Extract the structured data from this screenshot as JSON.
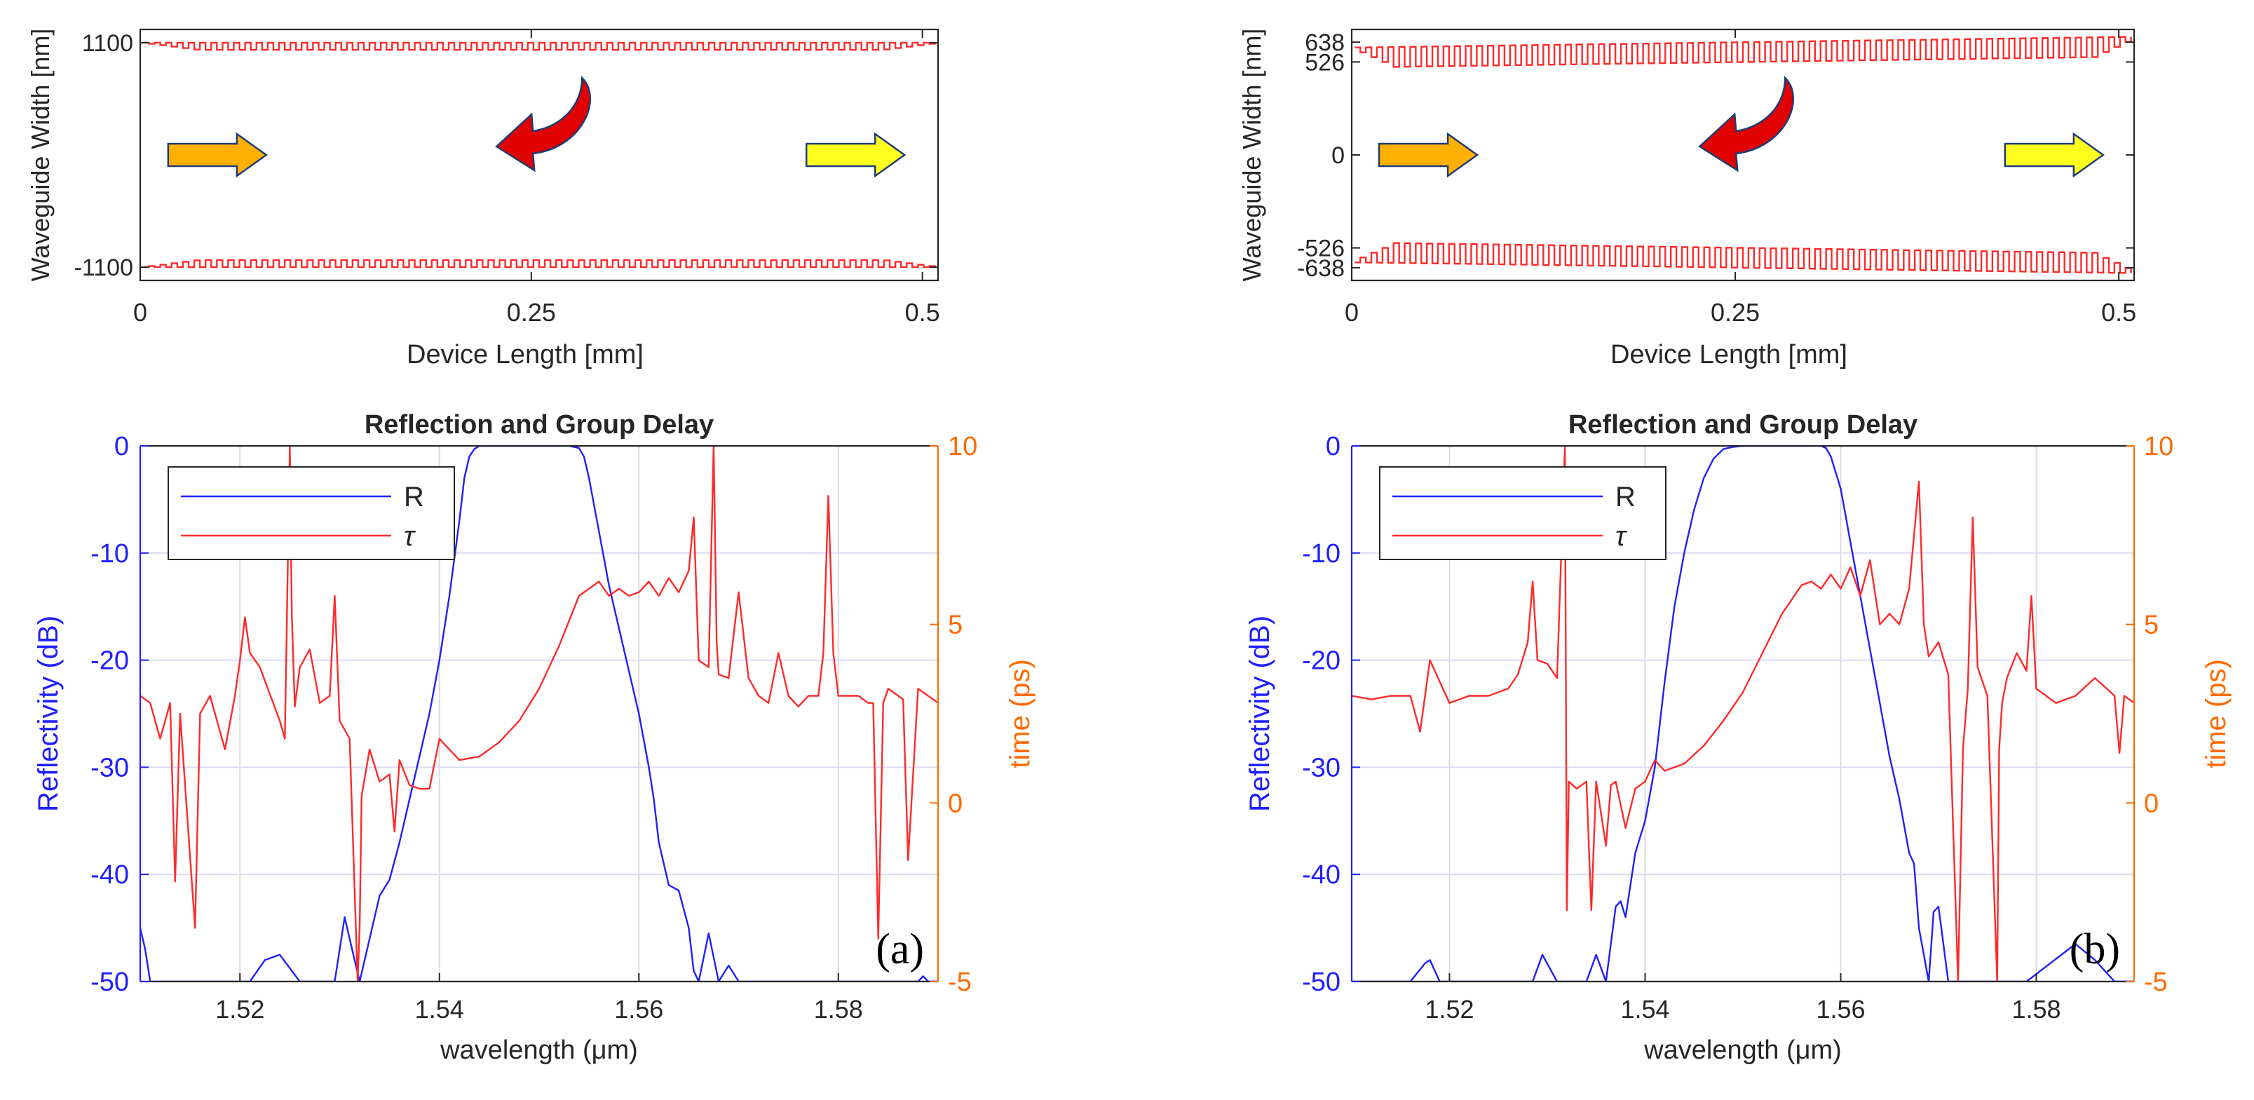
{
  "figure": {
    "panels": [
      {
        "letter": "(a)",
        "structure": {
          "ylabel": "Waveguide Width [nm]",
          "xlabel": "Device Length  [mm]",
          "x_ticks": [
            "0",
            "0.25",
            "0.5"
          ],
          "y_ticks": [
            "1100",
            "-1100"
          ],
          "xlim": [
            0,
            0.51
          ],
          "ylim": [
            -1230,
            1230
          ],
          "grating": {
            "top_outer": 1100,
            "top_inner": 1030,
            "bottom_outer": -1100,
            "bottom_inner": -1030,
            "periods": 70,
            "apod": "edge"
          },
          "arrows": {
            "input": "input-arrow",
            "reflected": "reflected-arrow",
            "output": "output-arrow"
          }
        }
      },
      {
        "letter": "(b)",
        "structure": {
          "ylabel": "Waveguide Width [nm]",
          "xlabel": "Device Length  [mm]",
          "x_ticks": [
            "0",
            "0.25",
            "0.5"
          ],
          "y_ticks": [
            "638",
            "526",
            "0",
            "-526",
            "-638"
          ],
          "xlim": [
            0,
            0.51
          ],
          "ylim": [
            -710,
            710
          ],
          "grating": {
            "top_outer": 638,
            "top_inner": 526,
            "bottom_outer": -638,
            "bottom_inner": -526,
            "periods": 70,
            "apod": "chirp"
          },
          "arrows": {
            "input": "input-arrow",
            "reflected": "reflected-arrow",
            "output": "output-arrow"
          }
        }
      }
    ],
    "colors": {
      "reflectivity": "#1f1fff",
      "delay": "#ff2a2a",
      "right_axis": "#ff6a00",
      "arrow_in": "#ffb000",
      "arrow_out": "#ffff1e",
      "arrow_reflect": "#e00000"
    }
  },
  "chart_data": [
    {
      "type": "line",
      "title": "Reflection and Group Delay",
      "xlabel": "wavelength  (μm)",
      "ylabel_left": "Reflectivity  (dB)",
      "ylabel_right": "time  (ps)",
      "xlim": [
        1.51,
        1.59
      ],
      "ylim_left": [
        -50,
        0
      ],
      "ylim_right": [
        -5,
        10
      ],
      "x_ticks": [
        "1.52",
        "1.54",
        "1.56",
        "1.58"
      ],
      "y_ticks_left": [
        "0",
        "-10",
        "-20",
        "-30",
        "-40",
        "-50"
      ],
      "y_ticks_right": [
        "10",
        "5",
        "0",
        "-5"
      ],
      "grid": true,
      "legend": {
        "position": "top-left",
        "entries": [
          "R",
          "τ"
        ]
      },
      "series": [
        {
          "name": "R",
          "axis": "left",
          "x": [
            1.51,
            1.5105,
            1.511,
            1.512,
            1.514,
            1.516,
            1.518,
            1.521,
            1.5225,
            1.524,
            1.526,
            1.528,
            1.5295,
            1.5305,
            1.5315,
            1.532,
            1.533,
            1.534,
            1.535,
            1.536,
            1.537,
            1.538,
            1.539,
            1.54,
            1.541,
            1.542,
            1.5425,
            1.543,
            1.5435,
            1.544,
            1.545,
            1.547,
            1.55,
            1.553,
            1.554,
            1.5545,
            1.555,
            1.556,
            1.557,
            1.558,
            1.559,
            1.56,
            1.561,
            1.5615,
            1.562,
            1.563,
            1.564,
            1.565,
            1.5655,
            1.566,
            1.567,
            1.568,
            1.569,
            1.57,
            1.572,
            1.576,
            1.58,
            1.584,
            1.588,
            1.5885,
            1.589,
            1.59
          ],
          "values": [
            -45,
            -47,
            -50,
            -50,
            -50,
            -50,
            -50,
            -50,
            -48,
            -47.5,
            -50,
            -50,
            -50,
            -44,
            -48,
            -50,
            -46,
            -42,
            -40.5,
            -37,
            -33,
            -29,
            -25,
            -20,
            -14,
            -7,
            -3,
            -1,
            -0.3,
            0,
            0,
            0,
            0,
            0,
            -0.2,
            -1,
            -3,
            -8,
            -13,
            -17,
            -21,
            -25,
            -30,
            -33,
            -37,
            -41,
            -41.5,
            -45,
            -49,
            -50,
            -45.5,
            -50,
            -48.5,
            -50,
            -50,
            -50,
            -50,
            -50,
            -50,
            -49.5,
            -50,
            -50
          ]
        },
        {
          "name": "τ",
          "axis": "right",
          "x": [
            1.51,
            1.511,
            1.512,
            1.513,
            1.5135,
            1.514,
            1.5155,
            1.516,
            1.517,
            1.5185,
            1.5195,
            1.52,
            1.5205,
            1.521,
            1.522,
            1.524,
            1.5245,
            1.525,
            1.5252,
            1.5255,
            1.526,
            1.527,
            1.528,
            1.529,
            1.5295,
            1.53,
            1.531,
            1.5318,
            1.532,
            1.5322,
            1.533,
            1.534,
            1.535,
            1.5355,
            1.536,
            1.537,
            1.538,
            1.539,
            1.54,
            1.542,
            1.544,
            1.546,
            1.548,
            1.55,
            1.552,
            1.554,
            1.556,
            1.557,
            1.558,
            1.559,
            1.56,
            1.561,
            1.562,
            1.563,
            1.564,
            1.565,
            1.5655,
            1.566,
            1.567,
            1.5675,
            1.5678,
            1.568,
            1.569,
            1.57,
            1.571,
            1.572,
            1.573,
            1.574,
            1.575,
            1.576,
            1.577,
            1.578,
            1.5785,
            1.579,
            1.5795,
            1.58,
            1.582,
            1.583,
            1.5835,
            1.584,
            1.5845,
            1.585,
            1.586,
            1.5865,
            1.587,
            1.588,
            1.589,
            1.59
          ],
          "values": [
            3,
            2.8,
            1.8,
            2.8,
            -2.2,
            2.5,
            -3.5,
            2.5,
            3,
            1.5,
            3,
            4,
            5.2,
            4.2,
            3.8,
            2.3,
            1.8,
            10,
            5.3,
            2.7,
            3.8,
            4.3,
            2.8,
            3,
            5.8,
            2.3,
            1.8,
            -5,
            -3.5,
            0.2,
            1.5,
            0.6,
            0.8,
            -0.8,
            1.2,
            0.5,
            0.4,
            0.4,
            1.8,
            1.2,
            1.3,
            1.7,
            2.3,
            3.2,
            4.4,
            5.8,
            6.2,
            5.8,
            6,
            5.8,
            5.9,
            6.2,
            5.8,
            6.3,
            5.9,
            6.5,
            8,
            4,
            3.8,
            10,
            4.5,
            3.6,
            3.5,
            5.9,
            3.5,
            3,
            2.8,
            4.2,
            3,
            2.7,
            3,
            3,
            4.2,
            8.6,
            4.2,
            3,
            3,
            2.8,
            2.8,
            -3.8,
            2.8,
            3.2,
            3,
            2.9,
            -1.6,
            3.2,
            3,
            2.8
          ]
        }
      ]
    },
    {
      "type": "line",
      "title": "Reflection and Group Delay",
      "xlabel": "wavelength  (μm)",
      "ylabel_left": "Reflectivity  (dB)",
      "ylabel_right": "time  (ps)",
      "xlim": [
        1.51,
        1.59
      ],
      "ylim_left": [
        -50,
        0
      ],
      "ylim_right": [
        -5,
        10
      ],
      "x_ticks": [
        "1.52",
        "1.54",
        "1.56",
        "1.58"
      ],
      "y_ticks_left": [
        "0",
        "-10",
        "-20",
        "-30",
        "-40",
        "-50"
      ],
      "y_ticks_right": [
        "10",
        "5",
        "0",
        "-5"
      ],
      "grid": true,
      "legend": {
        "position": "top-left",
        "entries": [
          "R",
          "τ"
        ]
      },
      "series": [
        {
          "name": "R",
          "axis": "left",
          "x": [
            1.51,
            1.516,
            1.5175,
            1.518,
            1.519,
            1.52,
            1.524,
            1.5285,
            1.5295,
            1.531,
            1.534,
            1.535,
            1.536,
            1.537,
            1.5375,
            1.538,
            1.539,
            1.54,
            1.541,
            1.542,
            1.543,
            1.544,
            1.545,
            1.546,
            1.547,
            1.548,
            1.549,
            1.55,
            1.554,
            1.558,
            1.5585,
            1.559,
            1.56,
            1.561,
            1.562,
            1.563,
            1.564,
            1.565,
            1.566,
            1.567,
            1.5675,
            1.568,
            1.569,
            1.5695,
            1.57,
            1.571,
            1.575,
            1.579,
            1.584,
            1.586,
            1.588,
            1.59
          ],
          "values": [
            -50,
            -50,
            -48.3,
            -48,
            -50,
            -50,
            -50,
            -50,
            -47.5,
            -50,
            -50,
            -47.5,
            -50,
            -43,
            -42.5,
            -44,
            -38,
            -35,
            -30,
            -22,
            -15,
            -10,
            -6,
            -3,
            -1.2,
            -0.3,
            -0.1,
            0,
            0,
            0,
            -0.2,
            -1,
            -4,
            -9,
            -14,
            -19,
            -24,
            -29,
            -33,
            -38,
            -39,
            -45,
            -50,
            -43.5,
            -43,
            -50,
            -50,
            -50,
            -46.5,
            -48,
            -50,
            -50
          ]
        },
        {
          "name": "τ",
          "axis": "right",
          "x": [
            1.51,
            1.512,
            1.514,
            1.516,
            1.517,
            1.518,
            1.519,
            1.52,
            1.522,
            1.524,
            1.526,
            1.527,
            1.528,
            1.5285,
            1.529,
            1.53,
            1.531,
            1.5318,
            1.532,
            1.5322,
            1.533,
            1.534,
            1.5345,
            1.535,
            1.536,
            1.5365,
            1.537,
            1.538,
            1.539,
            1.54,
            1.541,
            1.542,
            1.544,
            1.546,
            1.548,
            1.55,
            1.552,
            1.554,
            1.556,
            1.557,
            1.558,
            1.559,
            1.56,
            1.561,
            1.562,
            1.563,
            1.564,
            1.565,
            1.566,
            1.567,
            1.568,
            1.5685,
            1.569,
            1.57,
            1.571,
            1.572,
            1.5725,
            1.573,
            1.5735,
            1.574,
            1.575,
            1.576,
            1.5762,
            1.5765,
            1.577,
            1.578,
            1.579,
            1.5795,
            1.58,
            1.582,
            1.584,
            1.586,
            1.588,
            1.5885,
            1.589,
            1.59
          ],
          "values": [
            3,
            2.9,
            3,
            3,
            2,
            4,
            3.4,
            2.8,
            3,
            3,
            3.2,
            3.6,
            4.5,
            6.2,
            4,
            3.9,
            3.5,
            10,
            -3,
            0.6,
            0.4,
            0.6,
            -3,
            0.6,
            -1.2,
            0.5,
            0.6,
            -0.7,
            0.4,
            0.6,
            1.2,
            0.9,
            1.1,
            1.6,
            2.3,
            3.1,
            4.2,
            5.3,
            6.1,
            6.2,
            6,
            6.4,
            6,
            6.6,
            5.8,
            6.8,
            5,
            5.3,
            5,
            6,
            9,
            5,
            4.1,
            4.5,
            3.6,
            -5,
            1.5,
            3.2,
            8,
            3.8,
            3,
            -5,
            1.5,
            2.8,
            3.5,
            4.2,
            3.7,
            5.8,
            3.2,
            2.8,
            3,
            3.5,
            3,
            1.4,
            3,
            2.8
          ]
        }
      ]
    }
  ]
}
